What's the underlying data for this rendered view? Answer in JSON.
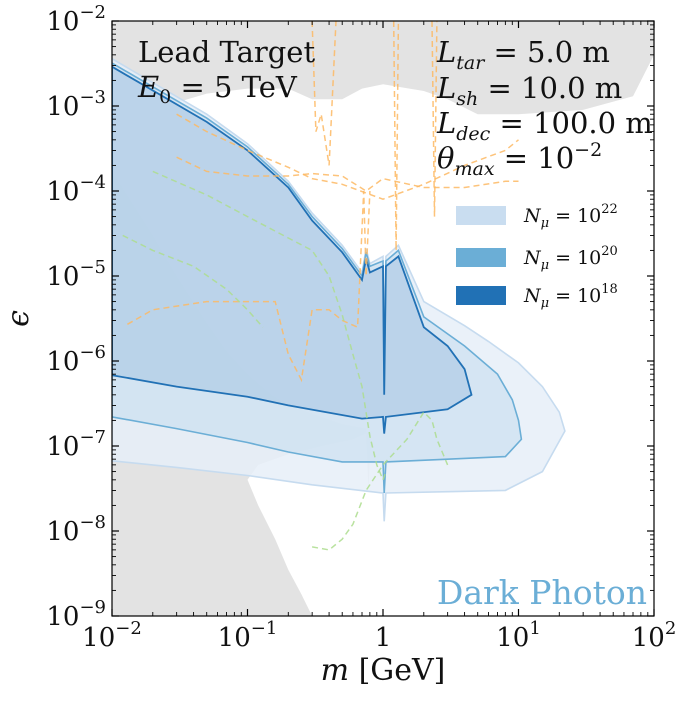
{
  "chart_data": {
    "type": "area",
    "title": "",
    "xlabel": "m [GeV]",
    "ylabel": "ϵ",
    "x_scale": "log",
    "y_scale": "log",
    "xlim": [
      0.01,
      100
    ],
    "ylim": [
      1e-09,
      0.01
    ],
    "grid": false,
    "legend_position": "right",
    "x_ticks": [
      {
        "base": "10",
        "exp": "−2"
      },
      {
        "base": "10",
        "exp": "−1"
      },
      {
        "base": "1",
        "exp": ""
      },
      {
        "base": "10",
        "exp": "1"
      },
      {
        "base": "10",
        "exp": "2"
      }
    ],
    "y_ticks": [
      {
        "base": "10",
        "exp": "−9"
      },
      {
        "base": "10",
        "exp": "−8"
      },
      {
        "base": "10",
        "exp": "−7"
      },
      {
        "base": "10",
        "exp": "−6"
      },
      {
        "base": "10",
        "exp": "−5"
      },
      {
        "base": "10",
        "exp": "−4"
      },
      {
        "base": "10",
        "exp": "−3"
      },
      {
        "base": "10",
        "exp": "−2"
      }
    ],
    "annotations_left": {
      "line1": "Lead Target",
      "line2_sym": "E",
      "line2_sub": "0",
      "line2_rest": " =  5 TeV"
    },
    "annotations_right": [
      {
        "sym": "L",
        "sub": "tar",
        "rest": " = 5.0 m"
      },
      {
        "sym": "L",
        "sub": "sh",
        "rest": " = 10.0 m"
      },
      {
        "sym": "L",
        "sub": "dec",
        "rest": " = 100.0 m"
      },
      {
        "sym": "θ",
        "sub": "max",
        "rest": " = 10",
        "sup": "−2"
      }
    ],
    "watermark": "Dark Photon",
    "colors": {
      "excluded": "#e3e3e3",
      "n22_fill": "#e6eff8",
      "n22_line": "#c6dbef",
      "n20_fill": "#c9dff0",
      "n20_line": "#6baed6",
      "n18_fill": "#a5c4e2",
      "n18_line": "#2171b5",
      "orange_dashed": "#fdb863",
      "green_dashed": "#addd8e",
      "watermark": "#6baed6"
    },
    "series": [
      {
        "name": "N_μ = 10^22",
        "legend": {
          "sym": "N",
          "sub": "μ",
          "rest": " = 10",
          "sup": "22"
        },
        "upper": [
          [
            0.01,
            0.0036
          ],
          [
            0.05,
            0.0008
          ],
          [
            0.1,
            0.00036
          ],
          [
            0.2,
            0.00013
          ],
          [
            0.3,
            5.5e-05
          ],
          [
            0.5,
            2.3e-05
          ],
          [
            0.7,
            1.1e-05
          ],
          [
            0.75,
            2.1e-05
          ],
          [
            0.8,
            1.4e-05
          ],
          [
            1.0,
            1.7e-05
          ],
          [
            1.02,
            5e-07
          ],
          [
            1.05,
            1.7e-05
          ],
          [
            1.3,
            2.3e-05
          ],
          [
            2,
            5e-06
          ],
          [
            4,
            2.6e-06
          ],
          [
            6,
            1.7e-06
          ],
          [
            10,
            9.5e-07
          ],
          [
            15,
            5e-07
          ],
          [
            20,
            2.5e-07
          ],
          [
            22,
            1.5e-07
          ]
        ],
        "lower": [
          [
            22,
            1.5e-07
          ],
          [
            15,
            5e-08
          ],
          [
            8,
            3e-08
          ],
          [
            3,
            2.9e-08
          ],
          [
            1.05,
            2.8e-08
          ],
          [
            1.02,
            1.3e-08
          ],
          [
            1.0,
            2.8e-08
          ],
          [
            0.3,
            3.5e-08
          ],
          [
            0.1,
            4.5e-08
          ],
          [
            0.03,
            5.6e-08
          ],
          [
            0.01,
            6.7e-08
          ]
        ]
      },
      {
        "name": "N_μ = 10^20",
        "legend": {
          "sym": "N",
          "sub": "μ",
          "rest": " = 10",
          "sup": "20"
        },
        "upper": [
          [
            0.01,
            0.0032
          ],
          [
            0.05,
            0.00072
          ],
          [
            0.1,
            0.00033
          ],
          [
            0.2,
            0.00012
          ],
          [
            0.3,
            5e-05
          ],
          [
            0.5,
            2.1e-05
          ],
          [
            0.7,
            1e-05
          ],
          [
            0.75,
            1.9e-05
          ],
          [
            0.8,
            1.3e-05
          ],
          [
            1.0,
            1.5e-05
          ],
          [
            1.02,
            5e-07
          ],
          [
            1.05,
            1.5e-05
          ],
          [
            1.3,
            2e-05
          ],
          [
            2,
            3.3e-06
          ],
          [
            4,
            1.5e-06
          ],
          [
            7,
            7e-07
          ],
          [
            9,
            3.5e-07
          ],
          [
            10,
            2e-07
          ],
          [
            10.5,
            1.2e-07
          ]
        ],
        "lower": [
          [
            10.5,
            1.2e-07
          ],
          [
            8,
            7.5e-08
          ],
          [
            3,
            7e-08
          ],
          [
            1.05,
            6.5e-08
          ],
          [
            1.02,
            2.8e-08
          ],
          [
            1.0,
            6.5e-08
          ],
          [
            0.5,
            6.5e-08
          ],
          [
            0.2,
            8.5e-08
          ],
          [
            0.1,
            1.1e-07
          ],
          [
            0.03,
            1.6e-07
          ],
          [
            0.01,
            2.2e-07
          ]
        ]
      },
      {
        "name": "N_μ = 10^18",
        "legend": {
          "sym": "N",
          "sub": "μ",
          "rest": " = 10",
          "sup": "18"
        },
        "upper": [
          [
            0.01,
            0.0029
          ],
          [
            0.05,
            0.00065
          ],
          [
            0.1,
            0.0003
          ],
          [
            0.2,
            0.00011
          ],
          [
            0.3,
            4.5e-05
          ],
          [
            0.5,
            1.9e-05
          ],
          [
            0.7,
            9e-06
          ],
          [
            0.75,
            1.6e-05
          ],
          [
            0.8,
            1.1e-05
          ],
          [
            1.0,
            1.3e-05
          ],
          [
            1.02,
            4e-07
          ],
          [
            1.05,
            1.3e-05
          ],
          [
            1.3,
            1.7e-05
          ],
          [
            2,
            2.5e-06
          ],
          [
            3,
            1.5e-06
          ],
          [
            4,
            8e-07
          ],
          [
            4.5,
            4e-07
          ]
        ],
        "lower": [
          [
            4.5,
            4e-07
          ],
          [
            3,
            2.7e-07
          ],
          [
            1.05,
            2.2e-07
          ],
          [
            1.02,
            1.4e-07
          ],
          [
            1.0,
            2.2e-07
          ],
          [
            0.7,
            2.1e-07
          ],
          [
            0.2,
            3e-07
          ],
          [
            0.1,
            3.8e-07
          ],
          [
            0.03,
            5e-07
          ],
          [
            0.01,
            6.8e-07
          ]
        ]
      }
    ],
    "excluded_regions": [
      {
        "name": "upper",
        "points": [
          [
            0.01,
            0.0025
          ],
          [
            0.02,
            0.0016
          ],
          [
            0.03,
            0.0011
          ],
          [
            0.05,
            0.0014
          ],
          [
            0.1,
            0.0016
          ],
          [
            0.2,
            0.0016
          ],
          [
            0.3,
            0.0012
          ],
          [
            0.5,
            0.0012
          ],
          [
            0.7,
            0.0016
          ],
          [
            1,
            0.0018
          ],
          [
            2,
            0.0015
          ],
          [
            3,
            0.0012
          ],
          [
            5,
            0.0008
          ],
          [
            10,
            0.0008
          ],
          [
            30,
            0.0009
          ],
          [
            70,
            0.0013
          ],
          [
            100,
            0.004
          ],
          [
            100,
            0.01
          ],
          [
            0.01,
            0.01
          ]
        ]
      },
      {
        "name": "lower",
        "points": [
          [
            0.01,
            1e-09
          ],
          [
            0.01,
            0.00017
          ],
          [
            0.02,
            3e-05
          ],
          [
            0.03,
            1e-05
          ],
          [
            0.05,
            2.8e-06
          ],
          [
            0.07,
            1.3e-06
          ],
          [
            0.1,
            7e-07
          ],
          [
            0.15,
            4e-07
          ],
          [
            0.2,
            3e-07
          ],
          [
            0.3,
            2.4e-07
          ],
          [
            0.5,
            1.8e-07
          ],
          [
            0.75,
            1.6e-07
          ],
          [
            0.78,
            3e-08
          ],
          [
            0.82,
            1.5e-07
          ],
          [
            0.6,
            1.2e-07
          ],
          [
            0.35,
            1e-07
          ],
          [
            0.2,
            8e-08
          ],
          [
            0.12,
            6e-08
          ],
          [
            0.1,
            4e-08
          ],
          [
            0.12,
            2e-08
          ],
          [
            0.16,
            8e-09
          ],
          [
            0.2,
            3.5e-09
          ],
          [
            0.25,
            1.8e-09
          ],
          [
            0.3,
            1e-09
          ]
        ]
      }
    ],
    "dashed_curves": [
      {
        "color": "orange",
        "points": [
          [
            0.03,
            0.00025
          ],
          [
            0.05,
            0.00017
          ],
          [
            0.1,
            0.00015
          ],
          [
            0.2,
            0.00015
          ],
          [
            0.3,
            0.00016
          ],
          [
            0.5,
            0.00015
          ],
          [
            0.75,
            0.0001
          ],
          [
            1,
            0.00014
          ],
          [
            2,
            0.00011
          ],
          [
            4,
            0.00011
          ],
          [
            8,
            0.00013
          ],
          [
            10,
            0.00013
          ]
        ]
      },
      {
        "color": "orange",
        "points": [
          [
            0.03,
            0.0008
          ],
          [
            0.05,
            0.0005
          ],
          [
            0.1,
            0.0003
          ],
          [
            0.2,
            0.00019
          ],
          [
            0.3,
            0.00014
          ],
          [
            0.5,
            0.00012
          ],
          [
            1,
            8e-05
          ],
          [
            2,
            0.00012
          ],
          [
            4,
            0.0002
          ],
          [
            8,
            0.0003
          ],
          [
            10,
            0.0004
          ]
        ]
      },
      {
        "color": "orange",
        "points": [
          [
            0.3,
            0.01
          ],
          [
            0.32,
            0.0005
          ],
          [
            0.35,
            0.0008
          ],
          [
            0.4,
            0.0002
          ],
          [
            0.45,
            0.01
          ]
        ]
      },
      {
        "color": "orange",
        "points": [
          [
            1.2,
            0.01
          ],
          [
            1.25,
            2e-05
          ],
          [
            1.3,
            0.01
          ]
        ]
      },
      {
        "color": "orange",
        "points": [
          [
            2.3,
            0.01
          ],
          [
            2.4,
            5e-05
          ],
          [
            2.5,
            0.01
          ]
        ]
      },
      {
        "color": "orange",
        "points": [
          [
            0.013,
            2.7e-06
          ],
          [
            0.02,
            4e-06
          ],
          [
            0.05,
            5e-06
          ],
          [
            0.1,
            5e-06
          ],
          [
            0.16,
            5e-06
          ],
          [
            0.2,
            1.2e-06
          ],
          [
            0.25,
            6e-07
          ],
          [
            0.3,
            4e-06
          ],
          [
            0.4,
            4e-06
          ],
          [
            0.5,
            3e-06
          ],
          [
            0.65,
            2.5e-06
          ],
          [
            0.72,
            0.0001
          ],
          [
            0.75,
            1e-05
          ],
          [
            0.8,
            0.0001
          ]
        ]
      },
      {
        "color": "green",
        "points": [
          [
            0.02,
            0.00017
          ],
          [
            0.05,
            9e-05
          ],
          [
            0.1,
            5e-05
          ],
          [
            0.2,
            2.8e-05
          ],
          [
            0.3,
            2e-05
          ],
          [
            0.4,
            1e-05
          ],
          [
            0.5,
            3.5e-06
          ],
          [
            0.6,
            1.2e-06
          ],
          [
            0.7,
            5e-07
          ],
          [
            0.8,
            1.3e-07
          ],
          [
            0.9,
            6e-08
          ],
          [
            1,
            4e-08
          ],
          [
            1.05,
            5e-08
          ]
        ]
      },
      {
        "color": "green",
        "points": [
          [
            0.3,
            6.5e-09
          ],
          [
            0.4,
            6e-09
          ],
          [
            0.5,
            8e-09
          ],
          [
            0.6,
            1.2e-08
          ],
          [
            0.75,
            3e-08
          ],
          [
            1,
            6e-08
          ],
          [
            1.5,
            1.2e-07
          ],
          [
            2,
            2.5e-07
          ],
          [
            2.3,
            2e-07
          ],
          [
            2.5,
            1.2e-07
          ],
          [
            3,
            6e-08
          ]
        ]
      },
      {
        "color": "green",
        "points": [
          [
            0.012,
            3e-05
          ],
          [
            0.02,
            2e-05
          ],
          [
            0.04,
            1.3e-05
          ],
          [
            0.07,
            7e-06
          ],
          [
            0.1,
            4e-06
          ],
          [
            0.13,
            2.5e-06
          ]
        ]
      }
    ]
  }
}
